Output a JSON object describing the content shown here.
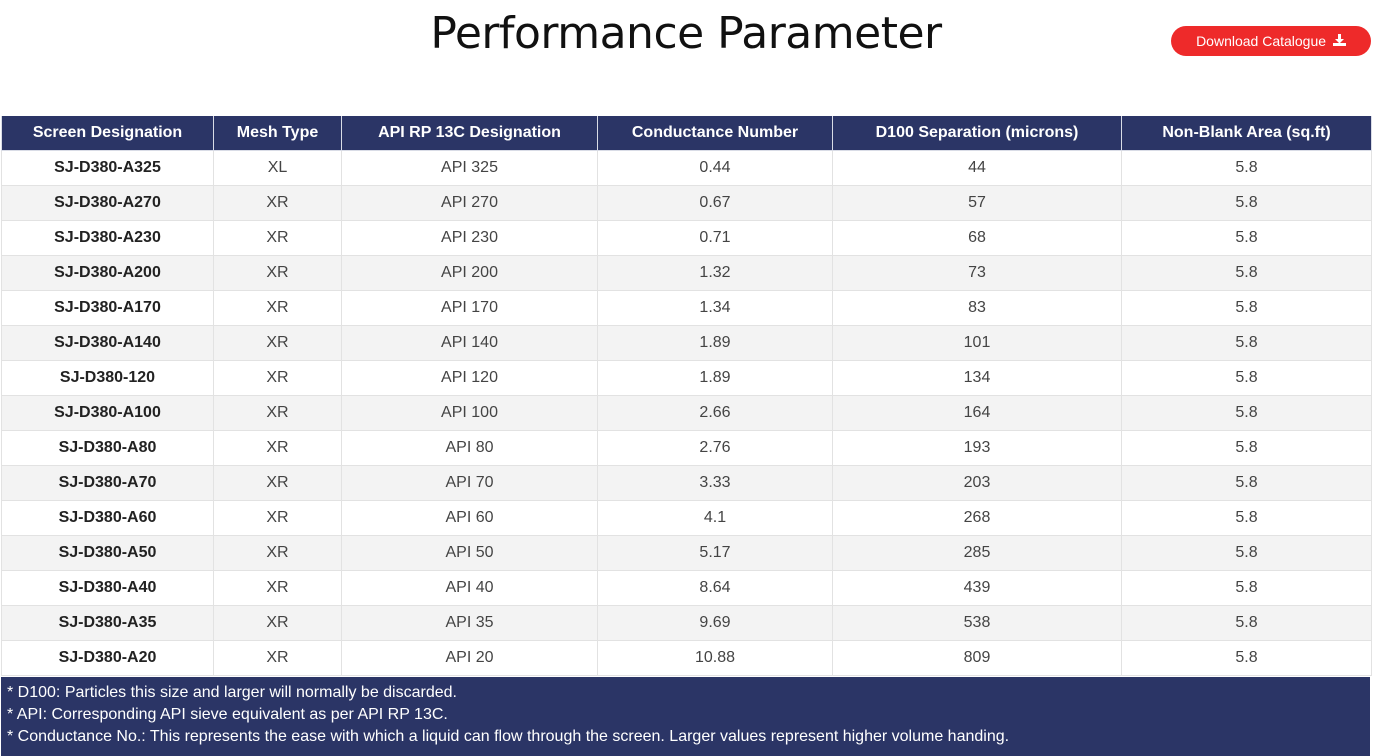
{
  "page_title": "Performance Parameter",
  "download_button": {
    "label": "Download Catalogue",
    "icon": "download-icon"
  },
  "colors": {
    "header_bg": "#2b3566",
    "button_bg": "#ee2a2a",
    "stripe_bg": "#f3f3f3"
  },
  "table": {
    "headers": [
      "Screen Designation",
      "Mesh Type",
      "API RP 13C Designation",
      "Conductance Number",
      "D100 Separation (microns)",
      "Non-Blank Area (sq.ft)"
    ],
    "rows": [
      [
        "SJ-D380-A325",
        "XL",
        "API 325",
        "0.44",
        "44",
        "5.8"
      ],
      [
        "SJ-D380-A270",
        "XR",
        "API 270",
        "0.67",
        "57",
        "5.8"
      ],
      [
        "SJ-D380-A230",
        "XR",
        "API 230",
        "0.71",
        "68",
        "5.8"
      ],
      [
        "SJ-D380-A200",
        "XR",
        "API 200",
        "1.32",
        "73",
        "5.8"
      ],
      [
        "SJ-D380-A170",
        "XR",
        "API 170",
        "1.34",
        "83",
        "5.8"
      ],
      [
        "SJ-D380-A140",
        "XR",
        "API 140",
        "1.89",
        "101",
        "5.8"
      ],
      [
        "SJ-D380-120",
        "XR",
        "API 120",
        "1.89",
        "134",
        "5.8"
      ],
      [
        "SJ-D380-A100",
        "XR",
        "API 100",
        "2.66",
        "164",
        "5.8"
      ],
      [
        "SJ-D380-A80",
        "XR",
        "API 80",
        "2.76",
        "193",
        "5.8"
      ],
      [
        "SJ-D380-A70",
        "XR",
        "API 70",
        "3.33",
        "203",
        "5.8"
      ],
      [
        "SJ-D380-A60",
        "XR",
        "API 60",
        "4.1",
        "268",
        "5.8"
      ],
      [
        "SJ-D380-A50",
        "XR",
        "API 50",
        "5.17",
        "285",
        "5.8"
      ],
      [
        "SJ-D380-A40",
        "XR",
        "API 40",
        "8.64",
        "439",
        "5.8"
      ],
      [
        "SJ-D380-A35",
        "XR",
        "API 35",
        "9.69",
        "538",
        "5.8"
      ],
      [
        "SJ-D380-A20",
        "XR",
        "API 20",
        "10.88",
        "809",
        "5.8"
      ]
    ]
  },
  "notes": [
    "* D100: Particles this size and larger will normally be discarded.",
    "* API: Corresponding API sieve equivalent as per API RP 13C.",
    "* Conductance No.: This represents the ease with which a liquid can flow through the screen. Larger values represent higher volume handing."
  ]
}
